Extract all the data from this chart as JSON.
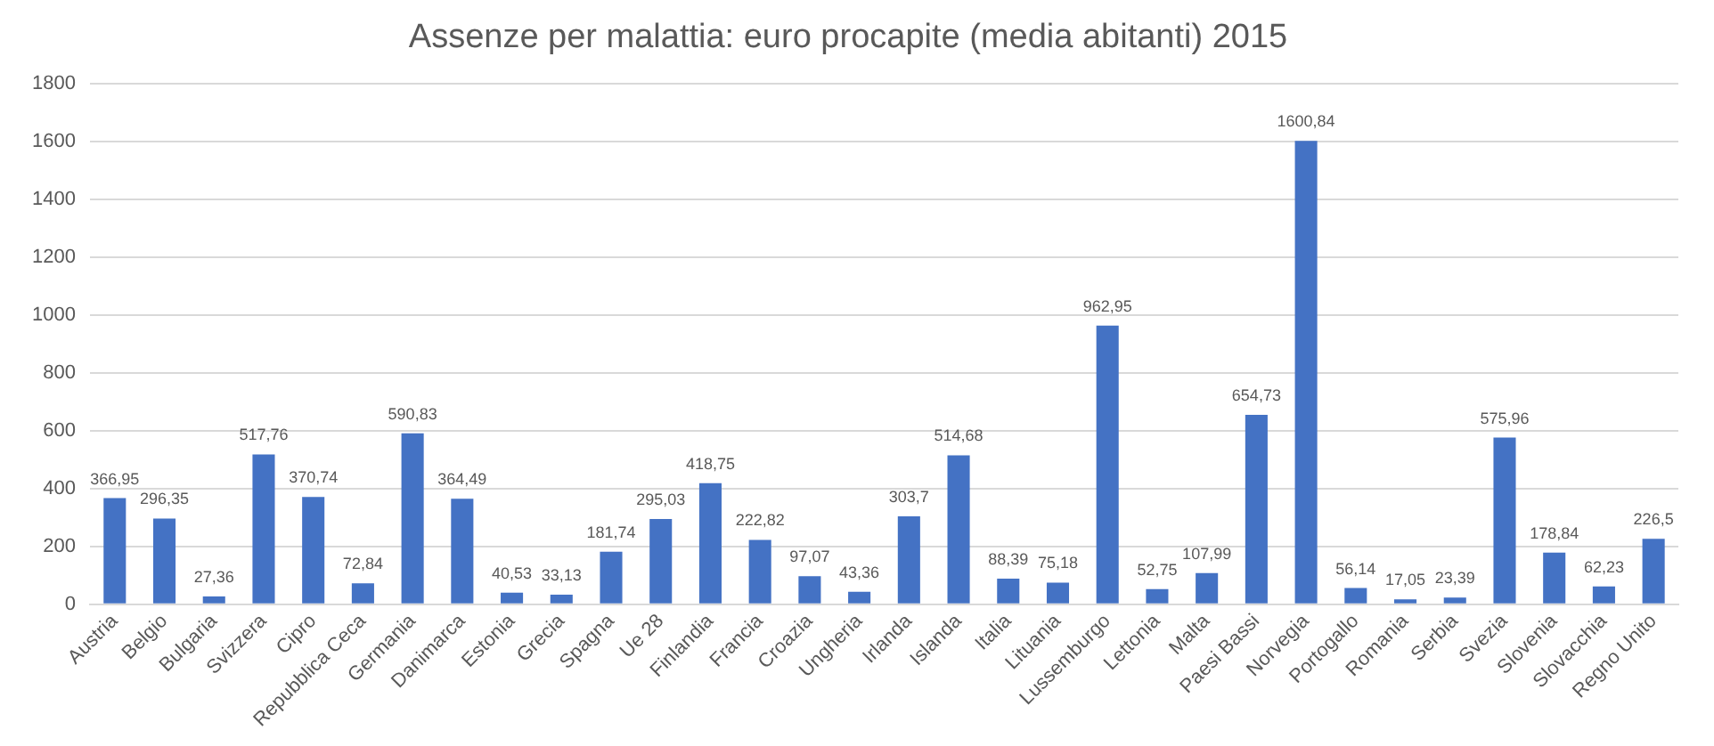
{
  "chart_data": {
    "type": "bar",
    "title": "Assenze per malattia: euro procapite (media abitanti) 2015",
    "categories": [
      "Austria",
      "Belgio",
      "Bulgaria",
      "Svizzera",
      "Cipro",
      "Repubblica Ceca",
      "Germania",
      "Danimarca",
      "Estonia",
      "Grecia",
      "Spagna",
      "Ue 28",
      "Finlandia",
      "Francia",
      "Croazia",
      "Ungheria",
      "Irlanda",
      "Islanda",
      "Italia",
      "Lituania",
      "Lussemburgo",
      "Lettonia",
      "Malta",
      "Paesi Bassi",
      "Norvegia",
      "Portogallo",
      "Romania",
      "Serbia",
      "Svezia",
      "Slovenia",
      "Slovacchia",
      "Regno Unito"
    ],
    "values": [
      366.95,
      296.35,
      27.36,
      517.76,
      370.74,
      72.84,
      590.83,
      364.49,
      40.53,
      33.13,
      181.74,
      295.03,
      418.75,
      222.82,
      97.07,
      43.36,
      303.7,
      514.68,
      88.39,
      75.18,
      962.95,
      52.75,
      107.99,
      654.73,
      1600.84,
      56.14,
      17.05,
      23.39,
      575.96,
      178.84,
      62.23,
      226.5
    ],
    "value_labels": [
      "366,95",
      "296,35",
      "27,36",
      "517,76",
      "370,74",
      "72,84",
      "590,83",
      "364,49",
      "40,53",
      "33,13",
      "181,74",
      "295,03",
      "418,75",
      "222,82",
      "97,07",
      "43,36",
      "303,7",
      "514,68",
      "88,39",
      "75,18",
      "962,95",
      "52,75",
      "107,99",
      "654,73",
      "1600,84",
      "56,14",
      "17,05",
      "23,39",
      "575,96",
      "178,84",
      "62,23",
      "226,5"
    ],
    "color": "#4472c4",
    "ylim": [
      0,
      1800
    ],
    "yticks": [
      0,
      200,
      400,
      600,
      800,
      1000,
      1200,
      1400,
      1600,
      1800
    ],
    "grid": "y"
  }
}
